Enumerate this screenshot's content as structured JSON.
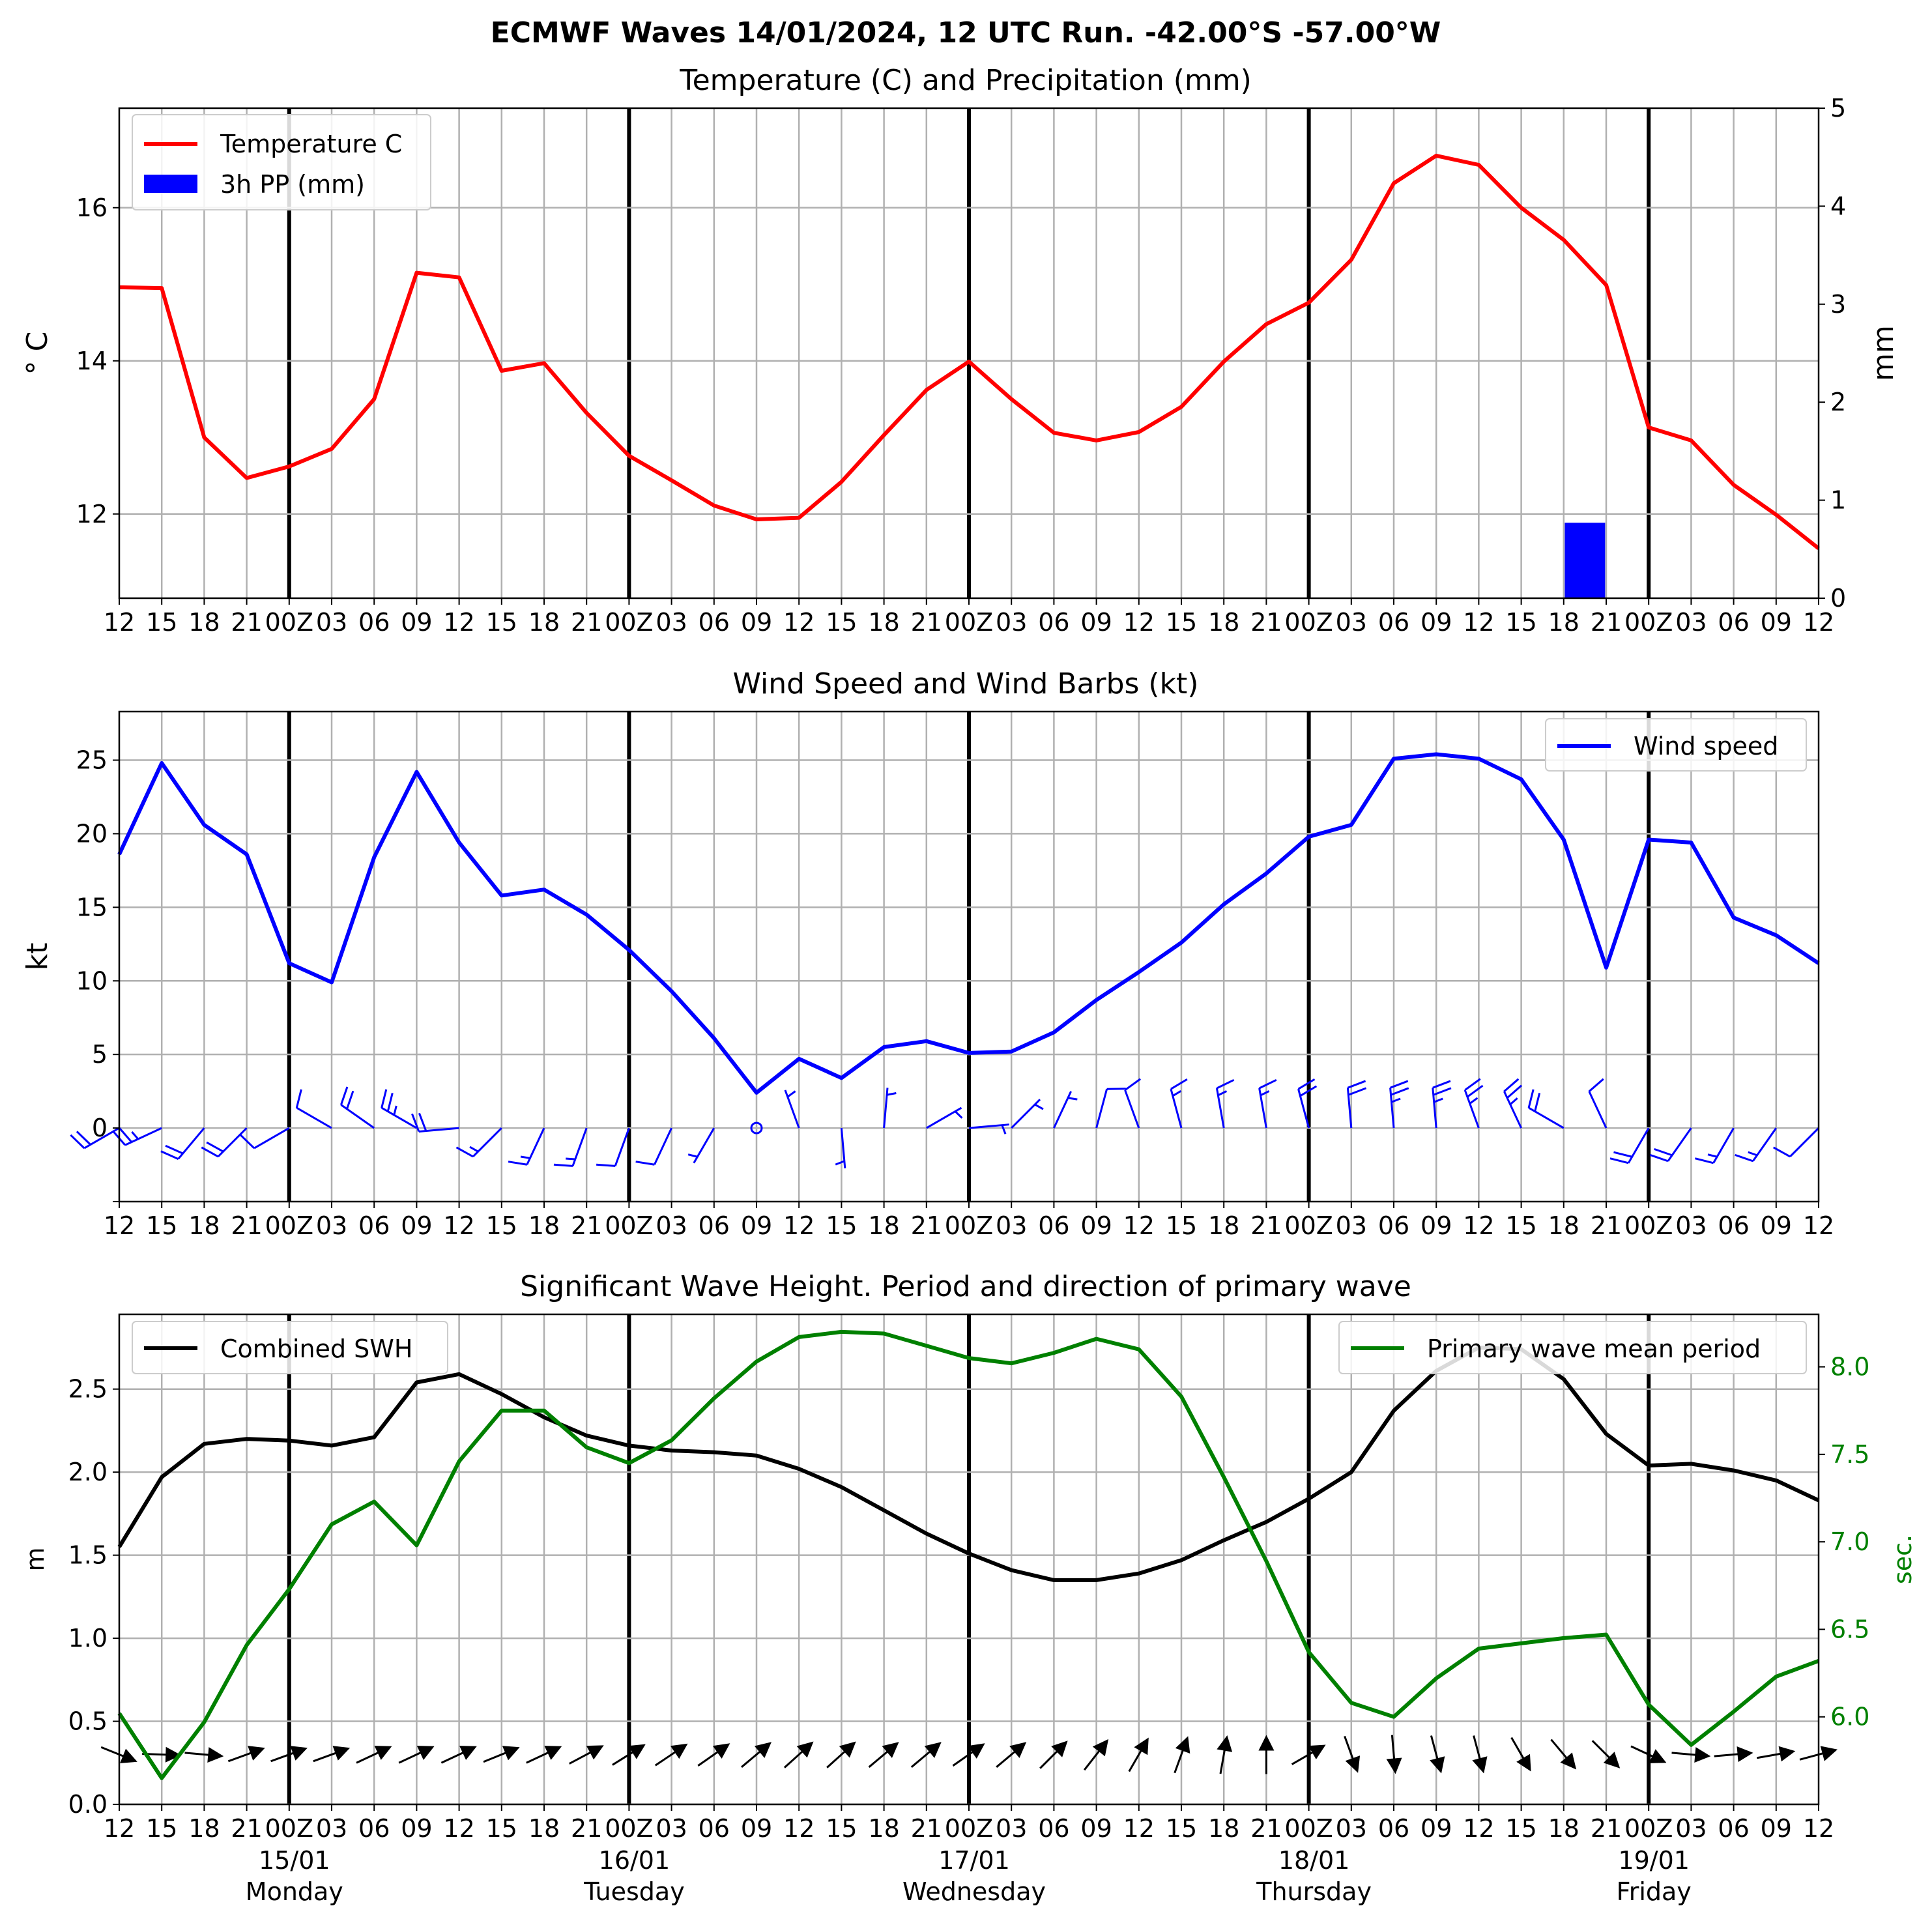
{
  "figure": {
    "title": "ECMWF Waves 14/01/2024, 12 UTC Run. -42.00°S -57.00°W"
  },
  "time_axis": {
    "tick_labels": [
      "12",
      "15",
      "18",
      "21",
      "00Z",
      "03",
      "06",
      "09",
      "12",
      "15",
      "18",
      "21",
      "00Z",
      "03",
      "06",
      "09",
      "12",
      "15",
      "18",
      "21",
      "00Z",
      "03",
      "06",
      "09",
      "12",
      "15",
      "18",
      "21",
      "00Z",
      "03",
      "06",
      "09",
      "12",
      "15",
      "18",
      "21",
      "00Z",
      "03",
      "06",
      "09",
      "12"
    ],
    "day_labels": [
      {
        "index": 4,
        "date": "15/01",
        "weekday": "Monday"
      },
      {
        "index": 12,
        "date": "16/01",
        "weekday": "Tuesday"
      },
      {
        "index": 20,
        "date": "17/01",
        "weekday": "Wednesday"
      },
      {
        "index": 28,
        "date": "18/01",
        "weekday": "Thursday"
      },
      {
        "index": 36,
        "date": "19/01",
        "weekday": "Friday"
      }
    ]
  },
  "colors": {
    "temperature": "#ff0000",
    "precip": "#0000ff",
    "wind": "#0000ff",
    "swh": "#000000",
    "period": "#008000",
    "grid": "#b0b0b0"
  },
  "chart_data": [
    {
      "type": "line",
      "title": "Temperature (C) and Precipitation (mm)",
      "ylabel": "$^\\circ$C",
      "ylabel_display": "° C",
      "y2label": "mm",
      "ylim": [
        10.9,
        17.3
      ],
      "y2lim": [
        0,
        5
      ],
      "yticks": [
        12,
        14,
        16
      ],
      "y2ticks": [
        0,
        1,
        2,
        3,
        4,
        5
      ],
      "legend_position": "upper left",
      "series": [
        {
          "name": "Temperature C",
          "axis": "left",
          "values": [
            14.96,
            14.95,
            13.0,
            12.47,
            12.62,
            12.85,
            13.5,
            15.15,
            15.09,
            13.87,
            13.97,
            13.32,
            12.76,
            12.44,
            12.11,
            11.93,
            11.95,
            12.42,
            13.03,
            13.62,
            13.99,
            13.5,
            13.06,
            12.96,
            13.07,
            13.4,
            13.99,
            14.48,
            14.76,
            15.32,
            16.32,
            16.68,
            16.56,
            16.0,
            15.58,
            14.99,
            13.13,
            12.96,
            12.38,
            11.99,
            11.55
          ]
        },
        {
          "name": "3h PP (mm)",
          "axis": "right",
          "type": "bar",
          "values": [
            0,
            0,
            0,
            0,
            0,
            0,
            0,
            0,
            0,
            0,
            0,
            0,
            0,
            0,
            0,
            0,
            0,
            0,
            0,
            0,
            0,
            0,
            0,
            0,
            0,
            0,
            0,
            0,
            0,
            0,
            0,
            0,
            0,
            0,
            0.77,
            0,
            0,
            0,
            0,
            0,
            0
          ]
        }
      ]
    },
    {
      "type": "line",
      "title": "Wind Speed and Wind Barbs (kt)",
      "ylabel": "kt",
      "ylim": [
        -5,
        28.3
      ],
      "yticks": [
        0,
        5,
        10,
        15,
        20,
        25
      ],
      "legend_position": "upper right",
      "series": [
        {
          "name": "Wind speed",
          "values": [
            18.6,
            24.8,
            20.6,
            18.6,
            11.2,
            9.9,
            18.4,
            24.2,
            19.4,
            15.8,
            16.2,
            14.5,
            12.1,
            9.3,
            6.1,
            2.4,
            4.7,
            3.4,
            5.5,
            5.9,
            5.1,
            5.2,
            6.5,
            8.7,
            10.6,
            12.6,
            15.2,
            17.3,
            19.8,
            20.6,
            25.1,
            25.4,
            25.1,
            23.7,
            19.6,
            10.9,
            19.6,
            19.4,
            14.3,
            13.1,
            11.2
          ]
        }
      ],
      "barbs": {
        "baseline": 0,
        "direction_from_deg": [
          240,
          245,
          220,
          225,
          240,
          300,
          305,
          300,
          265,
          225,
          205,
          200,
          200,
          205,
          210,
          0,
          340,
          175,
          5,
          60,
          85,
          45,
          25,
          15,
          340,
          345,
          350,
          350,
          345,
          355,
          355,
          355,
          340,
          335,
          300,
          335,
          210,
          215,
          210,
          215,
          225
        ]
      }
    },
    {
      "type": "line",
      "title": "Significant Wave Height. Period and direction of primary wave",
      "ylabel": "m",
      "y2label": "sec.",
      "ylim": [
        0,
        2.95
      ],
      "y2lim": [
        5.5,
        8.3
      ],
      "yticks": [
        0.0,
        0.5,
        1.0,
        1.5,
        2.0,
        2.5
      ],
      "y2ticks": [
        6.0,
        6.5,
        7.0,
        7.5,
        8.0
      ],
      "ytick_labels": [
        "0.0",
        "0.5",
        "1.0",
        "1.5",
        "2.0",
        "2.5"
      ],
      "y2tick_labels": [
        "6.0",
        "6.5",
        "7.0",
        "7.5",
        "8.0"
      ],
      "legend_positions": {
        "Combined SWH": "upper left",
        "Primary wave mean period": "upper right"
      },
      "series": [
        {
          "name": "Combined SWH",
          "axis": "left",
          "values": [
            1.55,
            1.97,
            2.17,
            2.2,
            2.19,
            2.16,
            2.21,
            2.54,
            2.59,
            2.47,
            2.33,
            2.22,
            2.16,
            2.13,
            2.12,
            2.1,
            2.02,
            1.91,
            1.77,
            1.63,
            1.51,
            1.41,
            1.35,
            1.35,
            1.39,
            1.47,
            1.59,
            1.7,
            1.84,
            2.0,
            2.37,
            2.61,
            2.75,
            2.74,
            2.56,
            2.23,
            2.04,
            2.05,
            2.01,
            1.95,
            1.83
          ]
        },
        {
          "name": "Primary wave mean period",
          "axis": "right",
          "values": [
            6.02,
            5.65,
            5.97,
            6.41,
            6.73,
            7.1,
            7.23,
            6.98,
            7.46,
            7.75,
            7.75,
            7.54,
            7.45,
            7.58,
            7.82,
            8.03,
            8.17,
            8.2,
            8.19,
            8.12,
            8.05,
            8.02,
            8.08,
            8.16,
            8.1,
            7.83,
            7.37,
            6.89,
            6.37,
            6.08,
            6.0,
            6.22,
            6.39,
            6.42,
            6.45,
            6.47,
            6.07,
            5.84,
            6.03,
            6.23,
            6.32
          ]
        }
      ],
      "wave_direction_from_deg": [
        292,
        272,
        275,
        250,
        250,
        250,
        245,
        245,
        245,
        248,
        245,
        242,
        238,
        236,
        235,
        230,
        228,
        228,
        230,
        230,
        235,
        230,
        225,
        218,
        210,
        200,
        190,
        180,
        240,
        340,
        355,
        345,
        345,
        330,
        320,
        315,
        295,
        275,
        265,
        260,
        255
      ]
    }
  ]
}
